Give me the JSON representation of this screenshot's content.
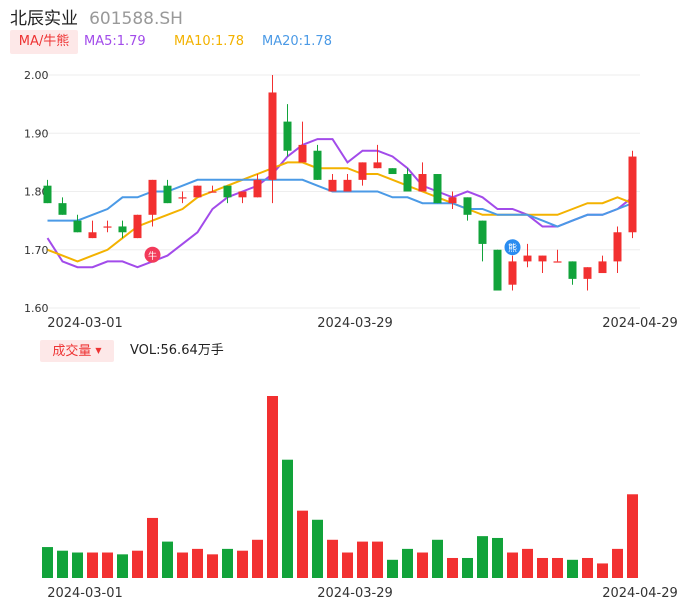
{
  "header": {
    "name": "北辰实业",
    "code": "601588.SH"
  },
  "ma_legend": {
    "tag": "MA/牛熊",
    "items": [
      {
        "label": "MA5:1.79",
        "color": "#a24bea"
      },
      {
        "label": "MA10:1.78",
        "color": "#f3b200"
      },
      {
        "label": "MA20:1.78",
        "color": "#4b9ae6"
      }
    ]
  },
  "volume_legend": {
    "tag": "成交量",
    "value": "VOL:56.64万手"
  },
  "colors": {
    "up": "#f23030",
    "down": "#11a33a",
    "markers": {
      "bull": "#f23a5a",
      "bear": "#2a8cf0"
    }
  },
  "markers": [
    {
      "type": "bull",
      "label": "牛",
      "index": 7,
      "price": 1.712
    },
    {
      "type": "bear",
      "label": "熊",
      "index": 31,
      "price": 1.725
    }
  ],
  "chart_data": [
    {
      "type": "candlestick",
      "ylim": [
        1.6,
        2.0
      ],
      "yticks": [
        "2.00",
        "1.90",
        "1.80",
        "1.70",
        "1.60"
      ],
      "xticks": [
        {
          "label": "2024-03-01",
          "index": 2.5
        },
        {
          "label": "2024-03-29",
          "index": 20.5
        },
        {
          "label": "2024-04-29",
          "index": 39.5
        }
      ],
      "candles": [
        {
          "o": 1.81,
          "h": 1.82,
          "l": 1.78,
          "c": 1.78
        },
        {
          "o": 1.78,
          "h": 1.79,
          "l": 1.76,
          "c": 1.76
        },
        {
          "o": 1.75,
          "h": 1.76,
          "l": 1.73,
          "c": 1.73
        },
        {
          "o": 1.72,
          "h": 1.75,
          "l": 1.72,
          "c": 1.73
        },
        {
          "o": 1.74,
          "h": 1.75,
          "l": 1.73,
          "c": 1.74
        },
        {
          "o": 1.74,
          "h": 1.75,
          "l": 1.72,
          "c": 1.73
        },
        {
          "o": 1.72,
          "h": 1.76,
          "l": 1.72,
          "c": 1.76
        },
        {
          "o": 1.76,
          "h": 1.82,
          "l": 1.74,
          "c": 1.82
        },
        {
          "o": 1.81,
          "h": 1.82,
          "l": 1.78,
          "c": 1.78
        },
        {
          "o": 1.79,
          "h": 1.8,
          "l": 1.78,
          "c": 1.79
        },
        {
          "o": 1.79,
          "h": 1.81,
          "l": 1.79,
          "c": 1.81
        },
        {
          "o": 1.8,
          "h": 1.81,
          "l": 1.8,
          "c": 1.8
        },
        {
          "o": 1.81,
          "h": 1.81,
          "l": 1.78,
          "c": 1.79
        },
        {
          "o": 1.79,
          "h": 1.8,
          "l": 1.78,
          "c": 1.8
        },
        {
          "o": 1.79,
          "h": 1.83,
          "l": 1.79,
          "c": 1.82
        },
        {
          "o": 1.82,
          "h": 2.0,
          "l": 1.78,
          "c": 1.97
        },
        {
          "o": 1.92,
          "h": 1.95,
          "l": 1.86,
          "c": 1.87
        },
        {
          "o": 1.85,
          "h": 1.92,
          "l": 1.85,
          "c": 1.88
        },
        {
          "o": 1.87,
          "h": 1.88,
          "l": 1.82,
          "c": 1.82
        },
        {
          "o": 1.8,
          "h": 1.83,
          "l": 1.8,
          "c": 1.82
        },
        {
          "o": 1.8,
          "h": 1.83,
          "l": 1.8,
          "c": 1.82
        },
        {
          "o": 1.82,
          "h": 1.85,
          "l": 1.81,
          "c": 1.85
        },
        {
          "o": 1.84,
          "h": 1.88,
          "l": 1.84,
          "c": 1.85
        },
        {
          "o": 1.84,
          "h": 1.84,
          "l": 1.83,
          "c": 1.83
        },
        {
          "o": 1.83,
          "h": 1.84,
          "l": 1.8,
          "c": 1.8
        },
        {
          "o": 1.8,
          "h": 1.85,
          "l": 1.8,
          "c": 1.83
        },
        {
          "o": 1.83,
          "h": 1.83,
          "l": 1.78,
          "c": 1.78
        },
        {
          "o": 1.78,
          "h": 1.8,
          "l": 1.77,
          "c": 1.79
        },
        {
          "o": 1.79,
          "h": 1.79,
          "l": 1.75,
          "c": 1.76
        },
        {
          "o": 1.75,
          "h": 1.75,
          "l": 1.68,
          "c": 1.71
        },
        {
          "o": 1.7,
          "h": 1.7,
          "l": 1.63,
          "c": 1.63
        },
        {
          "o": 1.64,
          "h": 1.69,
          "l": 1.63,
          "c": 1.68
        },
        {
          "o": 1.68,
          "h": 1.71,
          "l": 1.67,
          "c": 1.69
        },
        {
          "o": 1.68,
          "h": 1.69,
          "l": 1.66,
          "c": 1.69
        },
        {
          "o": 1.68,
          "h": 1.7,
          "l": 1.68,
          "c": 1.68
        },
        {
          "o": 1.68,
          "h": 1.68,
          "l": 1.64,
          "c": 1.65
        },
        {
          "o": 1.65,
          "h": 1.67,
          "l": 1.63,
          "c": 1.67
        },
        {
          "o": 1.66,
          "h": 1.69,
          "l": 1.66,
          "c": 1.68
        },
        {
          "o": 1.68,
          "h": 1.74,
          "l": 1.66,
          "c": 1.73
        },
        {
          "o": 1.73,
          "h": 1.87,
          "l": 1.72,
          "c": 1.86
        }
      ],
      "series": [
        {
          "name": "MA5",
          "color": "#a24bea",
          "values": [
            1.72,
            1.68,
            1.67,
            1.67,
            1.68,
            1.68,
            1.67,
            1.68,
            1.69,
            1.71,
            1.73,
            1.77,
            1.79,
            1.8,
            1.81,
            1.83,
            1.86,
            1.88,
            1.89,
            1.89,
            1.85,
            1.87,
            1.87,
            1.86,
            1.84,
            1.81,
            1.8,
            1.79,
            1.8,
            1.79,
            1.77,
            1.77,
            1.76,
            1.74,
            1.74,
            1.75,
            1.76,
            1.76,
            1.77,
            1.79
          ]
        },
        {
          "name": "MA10",
          "color": "#f3b200",
          "values": [
            1.7,
            1.69,
            1.68,
            1.69,
            1.7,
            1.72,
            1.74,
            1.75,
            1.76,
            1.77,
            1.79,
            1.8,
            1.81,
            1.82,
            1.83,
            1.84,
            1.85,
            1.85,
            1.84,
            1.84,
            1.84,
            1.83,
            1.83,
            1.82,
            1.81,
            1.8,
            1.79,
            1.78,
            1.77,
            1.76,
            1.76,
            1.76,
            1.76,
            1.76,
            1.76,
            1.77,
            1.78,
            1.78,
            1.79,
            1.78
          ]
        },
        {
          "name": "MA20",
          "color": "#4b9ae6",
          "values": [
            1.75,
            1.75,
            1.75,
            1.76,
            1.77,
            1.79,
            1.79,
            1.8,
            1.8,
            1.81,
            1.82,
            1.82,
            1.82,
            1.82,
            1.82,
            1.82,
            1.82,
            1.82,
            1.81,
            1.8,
            1.8,
            1.8,
            1.8,
            1.79,
            1.79,
            1.78,
            1.78,
            1.78,
            1.77,
            1.77,
            1.76,
            1.76,
            1.76,
            1.75,
            1.74,
            1.75,
            1.76,
            1.76,
            1.77,
            1.78
          ]
        }
      ]
    },
    {
      "type": "bar",
      "title": "成交量",
      "ylim": [
        0,
        100
      ],
      "xticks": [
        {
          "label": "2024-03-01",
          "index": 2.5
        },
        {
          "label": "2024-03-29",
          "index": 20.5
        },
        {
          "label": "2024-04-29",
          "index": 39.5
        }
      ],
      "values": [
        17,
        15,
        14,
        14,
        14,
        13,
        15,
        33,
        20,
        14,
        16,
        13,
        16,
        15,
        21,
        100,
        65,
        37,
        32,
        21,
        14,
        20,
        20,
        10,
        16,
        14,
        21,
        11,
        11,
        23,
        22,
        14,
        16,
        11,
        11,
        10,
        11,
        8,
        16,
        46
      ],
      "directions": [
        "down",
        "down",
        "down",
        "up",
        "up",
        "down",
        "up",
        "up",
        "down",
        "up",
        "up",
        "up",
        "down",
        "up",
        "up",
        "up",
        "down",
        "up",
        "down",
        "up",
        "up",
        "up",
        "up",
        "down",
        "down",
        "up",
        "down",
        "up",
        "down",
        "down",
        "down",
        "up",
        "up",
        "up",
        "up",
        "down",
        "up",
        "up",
        "up",
        "up"
      ]
    }
  ]
}
